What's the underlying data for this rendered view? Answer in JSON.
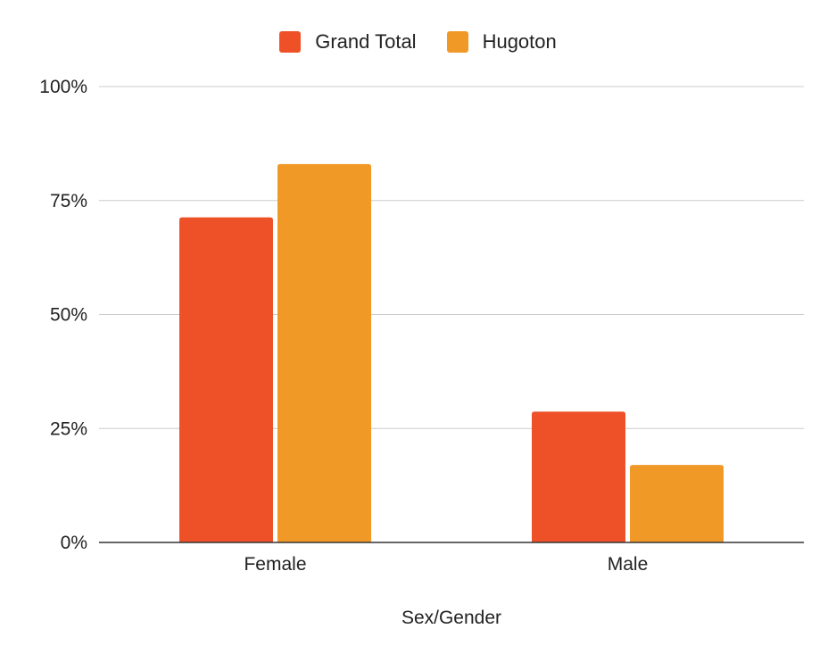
{
  "colors": {
    "grand_total": "#EE5127",
    "hugoton": "#F19926",
    "gridline": "#cccccc",
    "baseline": "#333333"
  },
  "chart_data": {
    "type": "bar",
    "categories": [
      "Female",
      "Male"
    ],
    "series": [
      {
        "name": "Grand Total",
        "values": [
          71.3,
          28.7
        ],
        "color": "#EE5127"
      },
      {
        "name": "Hugoton",
        "values": [
          83.0,
          17.0
        ],
        "color": "#F19926"
      }
    ],
    "yticks": [
      "0%",
      "25%",
      "50%",
      "75%",
      "100%"
    ],
    "ytick_values": [
      0,
      25,
      50,
      75,
      100
    ],
    "ylim": [
      0,
      100
    ],
    "xlabel": "Sex/Gender",
    "ylabel": "",
    "title": "",
    "grid": true,
    "legend_position": "top-center"
  }
}
